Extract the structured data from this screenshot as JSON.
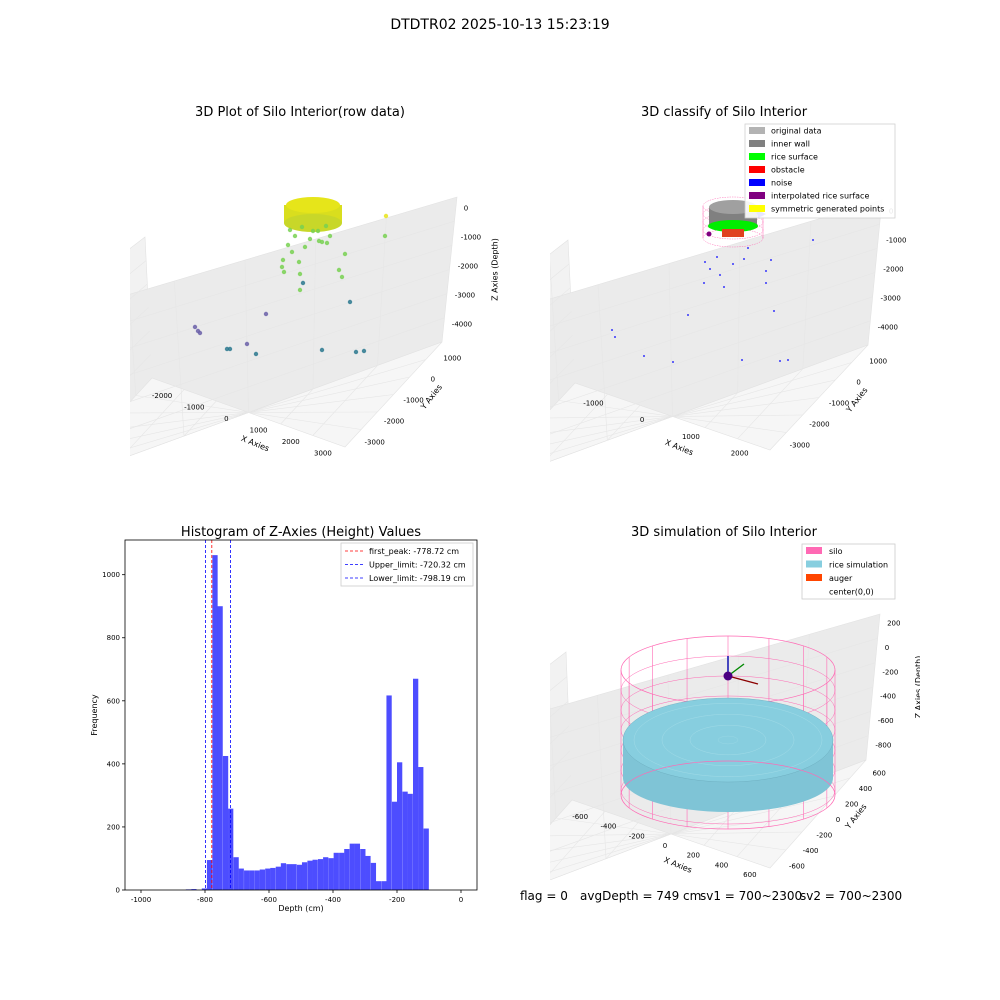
{
  "figure": {
    "suptitle": "DTDTR02 2025-10-13 15:23:19"
  },
  "footer": {
    "flag": "flag = 0",
    "avg_depth": "avgDepth = 749 cm",
    "sv1": "sv1 = 700~2300",
    "sv2": "sv2 = 700~2300"
  },
  "chart_data": [
    {
      "type": "scatter3d",
      "title": "3D Plot of Silo Interior(row data)",
      "xlabel": "X Axies",
      "ylabel": "Y Axies",
      "zlabel": "Z Axies (Depth)",
      "x_ticks": [
        "-2000",
        "-1000",
        "0",
        "1000",
        "2000",
        "3000"
      ],
      "y_ticks": [
        "1000",
        "0",
        "-1000",
        "-2000",
        "-3000"
      ],
      "z_ticks": [
        "0",
        "-1000",
        "-2000",
        "-3000",
        "-4000"
      ],
      "colors": {
        "high": "#e8e41a",
        "mid": "#78d151",
        "low": "#2a788e",
        "deep": "#6a5fa8"
      }
    },
    {
      "type": "scatter3d",
      "title": "3D classify of Silo Interior",
      "xlabel": "X Axies",
      "ylabel": "Y Axies",
      "zlabel": "Z Axies (Depth)",
      "x_ticks": [
        "-1000",
        "0",
        "1000",
        "2000"
      ],
      "y_ticks": [
        "1000",
        "0",
        "-1000",
        "-2000",
        "-3000"
      ],
      "z_ticks": [
        "0",
        "-1000",
        "-2000",
        "-3000",
        "-4000"
      ],
      "legend": [
        {
          "label": "original data",
          "color": "#b3b3b3"
        },
        {
          "label": "inner wall",
          "color": "#808080"
        },
        {
          "label": "rice surface",
          "color": "#00ff00"
        },
        {
          "label": "obstacle",
          "color": "#ff0000"
        },
        {
          "label": "noise",
          "color": "#0000ff"
        },
        {
          "label": "interpolated rice surface",
          "color": "#800080"
        },
        {
          "label": "symmetric generated points",
          "color": "#ffff00"
        }
      ]
    },
    {
      "type": "bar",
      "title": "Histogram of Z-Axies (Height) Values",
      "xlabel": "Depth (cm)",
      "ylabel": "Frequency",
      "xlim": [
        -1050,
        50
      ],
      "ylim": [
        0,
        1110
      ],
      "x_ticks": [
        -1000,
        -800,
        -600,
        -400,
        -200,
        0
      ],
      "y_ticks": [
        0,
        200,
        400,
        600,
        800,
        1000
      ],
      "bar_color": "#4d4dff",
      "bin_width": 16.5,
      "bins": [
        [
          -860,
          2
        ],
        [
          -843,
          3
        ],
        [
          -810,
          5
        ],
        [
          -794,
          95
        ],
        [
          -777,
          1062
        ],
        [
          -761,
          900
        ],
        [
          -744,
          425
        ],
        [
          -728,
          258
        ],
        [
          -711,
          104
        ],
        [
          -695,
          68
        ],
        [
          -678,
          62
        ],
        [
          -662,
          62
        ],
        [
          -645,
          62
        ],
        [
          -629,
          65
        ],
        [
          -612,
          68
        ],
        [
          -596,
          70
        ],
        [
          -579,
          74
        ],
        [
          -563,
          85
        ],
        [
          -546,
          82
        ],
        [
          -530,
          82
        ],
        [
          -513,
          80
        ],
        [
          -497,
          88
        ],
        [
          -480,
          93
        ],
        [
          -464,
          96
        ],
        [
          -447,
          98
        ],
        [
          -431,
          104
        ],
        [
          -414,
          101
        ],
        [
          -398,
          118
        ],
        [
          -381,
          118
        ],
        [
          -365,
          130
        ],
        [
          -348,
          147
        ],
        [
          -332,
          147
        ],
        [
          -315,
          130
        ],
        [
          -299,
          108
        ],
        [
          -282,
          86
        ],
        [
          -266,
          28
        ],
        [
          -249,
          28
        ],
        [
          -233,
          617
        ],
        [
          -216,
          280
        ],
        [
          -200,
          405
        ],
        [
          -183,
          312
        ],
        [
          -167,
          305
        ],
        [
          -150,
          670
        ],
        [
          -134,
          390
        ],
        [
          -117,
          195
        ]
      ],
      "lines": [
        {
          "label": "first_peak: -778.72 cm",
          "x": -778.72,
          "color": "#ff0000"
        },
        {
          "label": "Upper_limit: -720.32 cm",
          "x": -720.32,
          "color": "#0000ff"
        },
        {
          "label": "Lower_limit: -798.19 cm",
          "x": -798.19,
          "color": "#0000ff"
        }
      ]
    },
    {
      "type": "surface3d",
      "title": "3D simulation of Silo Interior",
      "xlabel": "X Axies",
      "ylabel": "Y Axies",
      "zlabel": "Z Axies (Depth)",
      "x_ticks": [
        "-600",
        "-400",
        "-200",
        "0",
        "200",
        "400",
        "600"
      ],
      "y_ticks": [
        "600",
        "400",
        "200",
        "0",
        "-200",
        "-400",
        "-600"
      ],
      "z_ticks": [
        "200",
        "0",
        "-200",
        "-400",
        "-600",
        "-800"
      ],
      "legend": [
        {
          "label": "silo",
          "color": "#ff69b4"
        },
        {
          "label": "rice simulation",
          "color": "#87cedf"
        },
        {
          "label": "auger",
          "color": "#ff4500"
        },
        {
          "label": "center(0,0)",
          "color": ""
        }
      ]
    }
  ]
}
